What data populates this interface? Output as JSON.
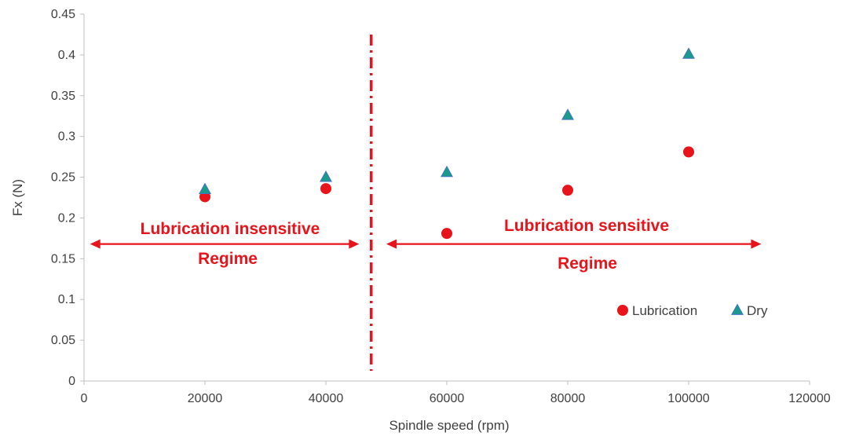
{
  "chart_data": {
    "type": "scatter",
    "xlabel": "Spindle speed (rpm)",
    "ylabel": "Fx (N)",
    "xlim": [
      0,
      120000
    ],
    "ylim": [
      0,
      0.45
    ],
    "xticks": [
      0,
      20000,
      40000,
      60000,
      80000,
      100000,
      120000
    ],
    "yticks": [
      0,
      0.05,
      0.1,
      0.15,
      0.2,
      0.25,
      0.3,
      0.35,
      0.4,
      0.45
    ],
    "xtick_labels": [
      "0",
      "20000",
      "40000",
      "60000",
      "80000",
      "100000",
      "120000"
    ],
    "ytick_labels": [
      "0",
      "0.05",
      "0.1",
      "0.15",
      "0.2",
      "0.25",
      "0.3",
      "0.35",
      "0.4",
      "0.45"
    ],
    "grid": false,
    "legend_position": "lower-right",
    "series": [
      {
        "name": "Lubrication",
        "marker": "circle",
        "color": "#e8141b",
        "x": [
          20000,
          40000,
          60000,
          80000,
          100000
        ],
        "y": [
          0.226,
          0.236,
          0.181,
          0.234,
          0.281
        ]
      },
      {
        "name": "Dry",
        "marker": "triangle",
        "color": "#1a9a8c",
        "edge_color": "#4472c4",
        "x": [
          20000,
          40000,
          60000,
          80000,
          100000
        ],
        "y": [
          0.235,
          0.25,
          0.256,
          0.326,
          0.401
        ]
      }
    ],
    "annotations": {
      "divider": {
        "x": 47500,
        "style": "dash-dot",
        "color": "#e8141b"
      },
      "insensitive": {
        "line1": "Lubrication insensitive",
        "line2": "Regime",
        "arrow_x": [
          1000,
          45500
        ],
        "arrow_y": 0.168,
        "color": "#e8141b"
      },
      "sensitive": {
        "line1": "Lubrication sensitive",
        "line2": "Regime",
        "arrow_x": [
          50000,
          112000
        ],
        "arrow_y": 0.168,
        "color": "#e8141b"
      }
    }
  }
}
